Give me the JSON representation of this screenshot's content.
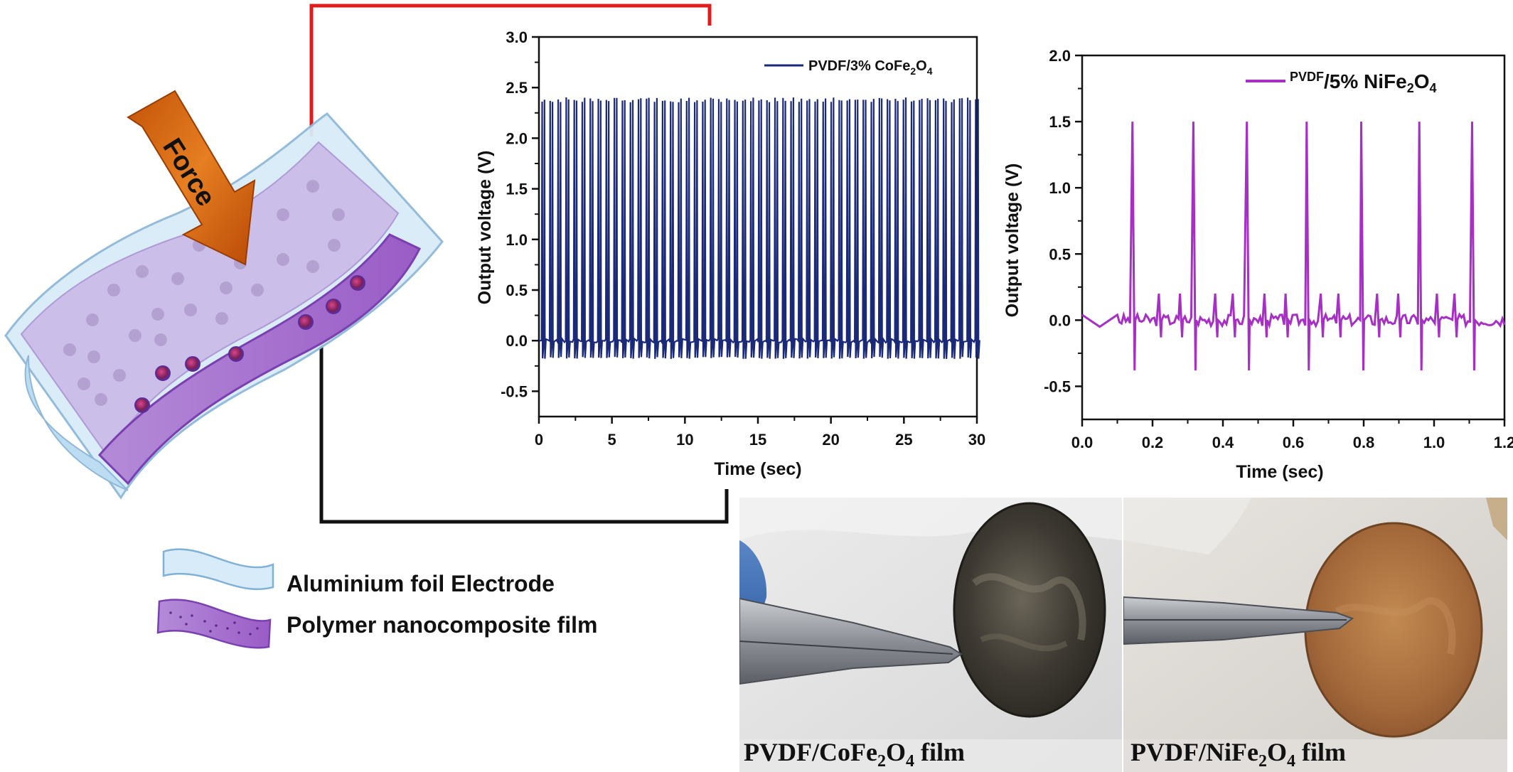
{
  "schematic": {
    "force_label": "Force",
    "colors": {
      "foil": "#cfe6f6",
      "film": "#9b62c9",
      "arrow": "#d86a12",
      "red_wire": "#e11b1b",
      "black_wire": "#111111"
    }
  },
  "legend_key": {
    "foil_label": "Aluminium foil Electrode",
    "film_label": "Polymer nanocomposite film"
  },
  "photos": {
    "left": {
      "caption_prefix": "PVDF/CoFe",
      "sub1": "2",
      "mid": "O",
      "sub2": "4",
      "suffix": " film"
    },
    "right": {
      "caption_prefix": "PVDF/NiFe",
      "sub1": "2",
      "mid": "O",
      "sub2": "4",
      "suffix": " film"
    }
  },
  "chart_data": [
    {
      "type": "line",
      "xlabel": "Time (sec)",
      "ylabel": "Output voltage (V)",
      "xlim": [
        0,
        30
      ],
      "ylim": [
        -0.75,
        3.0
      ],
      "x_ticks": [
        "0",
        "5",
        "10",
        "15",
        "20",
        "25",
        "30"
      ],
      "x_tick_values": [
        0,
        5,
        10,
        15,
        20,
        25,
        30
      ],
      "y_ticks": [
        "-0.5",
        "0.0",
        "0.5",
        "1.0",
        "1.5",
        "2.0",
        "2.5",
        "3.0"
      ],
      "y_tick_values": [
        -0.5,
        0.0,
        0.5,
        1.0,
        1.5,
        2.0,
        2.5,
        3.0
      ],
      "color": "#1b2a78",
      "legend": {
        "prefix": "PVDF/3% CoFe",
        "sub1": "2",
        "mid": "O",
        "sub2": "4"
      },
      "series": {
        "baseline": 0.0,
        "peak_high": 2.38,
        "peak_low": -0.17,
        "pulse_interval": 0.55,
        "t_start": 0.1,
        "t_end": 30
      }
    },
    {
      "type": "line",
      "xlabel": "Time (sec)",
      "ylabel": "Output voltage (V)",
      "xlim": [
        0,
        1.2
      ],
      "ylim": [
        -0.75,
        2.0
      ],
      "x_ticks": [
        "0.0",
        "0.2",
        "0.4",
        "0.6",
        "0.8",
        "1.0",
        "1.2"
      ],
      "x_tick_values": [
        0,
        0.2,
        0.4,
        0.6,
        0.8,
        1.0,
        1.2
      ],
      "y_ticks": [
        "-0.5",
        "0.0",
        "0.5",
        "1.0",
        "1.5",
        "2.0"
      ],
      "y_tick_values": [
        -0.5,
        0.0,
        0.5,
        1.0,
        1.5,
        2.0
      ],
      "color": "#a62fc4",
      "legend": {
        "prefix_small": "PVDF",
        "prefix": "/5% NiFe",
        "sub1": "2",
        "mid": "O",
        "sub2": "4"
      },
      "series": {
        "major_peaks_t": [
          0.145,
          0.318,
          0.47,
          0.64,
          0.795,
          0.96,
          1.11
        ],
        "major_peak_high": 1.5,
        "major_peak_low": -0.38,
        "minor_peaks_t": [
          0.22,
          0.28,
          0.38,
          0.43,
          0.52,
          0.58,
          0.68,
          0.73,
          0.84,
          0.9,
          1.01,
          1.06
        ],
        "minor_peak_high": 0.2,
        "minor_peak_low": -0.13,
        "start": [
          [
            0.0,
            0.04
          ],
          [
            0.05,
            -0.05
          ],
          [
            0.1,
            0.04
          ]
        ]
      }
    }
  ]
}
